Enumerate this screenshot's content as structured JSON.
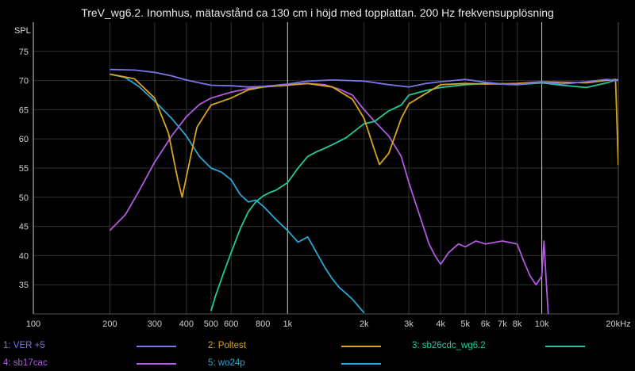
{
  "chart_data": {
    "type": "line",
    "title": "TreV_wg6.2. Inomhus, mätavstånd ca 130 cm i höjd med topplattan. 200 Hz frekvensupplösning",
    "ylabel": "SPL",
    "xlabel": "",
    "xscale": "log",
    "xlim": [
      100,
      20000
    ],
    "ylim": [
      30,
      80
    ],
    "yticks": [
      35,
      40,
      45,
      50,
      55,
      60,
      65,
      70,
      75
    ],
    "xticks": [
      {
        "v": 100,
        "label": "100"
      },
      {
        "v": 200,
        "label": "200"
      },
      {
        "v": 300,
        "label": "300"
      },
      {
        "v": 400,
        "label": "400"
      },
      {
        "v": 500,
        "label": "500"
      },
      {
        "v": 600,
        "label": "600"
      },
      {
        "v": 800,
        "label": "800"
      },
      {
        "v": 1000,
        "label": "1k"
      },
      {
        "v": 2000,
        "label": "2k"
      },
      {
        "v": 3000,
        "label": "3k"
      },
      {
        "v": 4000,
        "label": "4k"
      },
      {
        "v": 5000,
        "label": "5k"
      },
      {
        "v": 6000,
        "label": "6k"
      },
      {
        "v": 7000,
        "label": "7k"
      },
      {
        "v": 8000,
        "label": "8k"
      },
      {
        "v": 10000,
        "label": "10k"
      },
      {
        "v": 20000,
        "label": "20kHz"
      }
    ],
    "grid": true,
    "legend_position": "bottom",
    "series": [
      {
        "name": "1: VER +5",
        "color": "#7b73e6",
        "x": [
          200,
          250,
          300,
          350,
          400,
          450,
          500,
          600,
          700,
          800,
          900,
          1000,
          1200,
          1500,
          2000,
          2500,
          3000,
          3500,
          4000,
          5000,
          6000,
          7000,
          8000,
          10000,
          12000,
          15000,
          18000,
          20000
        ],
        "y": [
          71.9,
          71.8,
          71.4,
          70.8,
          70.1,
          69.6,
          69.2,
          69.1,
          68.9,
          69.0,
          69.2,
          69.4,
          69.9,
          70.1,
          69.9,
          69.3,
          68.9,
          69.5,
          69.8,
          70.2,
          69.7,
          69.4,
          69.3,
          69.8,
          69.4,
          69.8,
          70.2,
          70.0
        ]
      },
      {
        "name": "2: Poltest",
        "color": "#d9a520",
        "x": [
          200,
          250,
          300,
          340,
          370,
          385,
          400,
          440,
          500,
          600,
          700,
          800,
          1000,
          1200,
          1500,
          1800,
          2000,
          2200,
          2300,
          2500,
          2800,
          3000,
          3500,
          4000,
          5000,
          6000,
          8000,
          10000,
          15000,
          19500,
          20000
        ],
        "y": [
          71.1,
          70.3,
          67.0,
          61.0,
          53.0,
          50.0,
          53.5,
          62.0,
          65.8,
          67.0,
          68.4,
          68.9,
          69.2,
          69.5,
          68.9,
          66.8,
          63.5,
          58.0,
          55.6,
          57.5,
          63.5,
          66.0,
          67.8,
          69.3,
          69.5,
          69.4,
          69.5,
          69.8,
          69.6,
          70.2,
          55.5
        ]
      },
      {
        "name": "3: sb26cdc_wg6.2",
        "color": "#22c99a",
        "x": [
          500,
          520,
          560,
          600,
          650,
          700,
          750,
          800,
          850,
          900,
          1000,
          1100,
          1200,
          1300,
          1400,
          1500,
          1700,
          2000,
          2200,
          2500,
          2800,
          3000,
          3500,
          4000,
          5000,
          6000,
          8000,
          10000,
          12000,
          15000,
          18000,
          20000
        ],
        "y": [
          30.5,
          33.0,
          37.0,
          40.5,
          44.5,
          47.5,
          49.2,
          50.2,
          50.8,
          51.2,
          52.5,
          55.0,
          57.0,
          57.8,
          58.4,
          59.0,
          60.2,
          62.6,
          63.0,
          64.8,
          65.8,
          67.5,
          68.3,
          68.8,
          69.3,
          69.5,
          69.3,
          69.6,
          69.2,
          68.8,
          69.6,
          70.2
        ]
      },
      {
        "name": "4: sb17cac",
        "color": "#b05ae0",
        "x": [
          200,
          230,
          260,
          300,
          350,
          400,
          450,
          500,
          600,
          700,
          800,
          1000,
          1200,
          1400,
          1600,
          1800,
          2000,
          2200,
          2500,
          2800,
          3000,
          3300,
          3600,
          3800,
          4000,
          4300,
          4700,
          5000,
          5500,
          6000,
          7000,
          8000,
          8500,
          9000,
          9500,
          10000,
          10200,
          10400,
          10600
        ],
        "y": [
          44.3,
          47.0,
          51.0,
          56.0,
          60.5,
          63.8,
          65.9,
          67.0,
          68.0,
          68.6,
          69.0,
          69.3,
          69.5,
          69.3,
          68.5,
          67.5,
          65.0,
          63.0,
          60.5,
          57.0,
          52.5,
          47.0,
          42.0,
          40.0,
          38.5,
          40.5,
          42.0,
          41.5,
          42.5,
          42.0,
          42.5,
          42.0,
          39.0,
          36.5,
          35.0,
          36.5,
          42.5,
          36.0,
          30.0
        ]
      },
      {
        "name": "5: wo24p",
        "color": "#2aa6d6",
        "x": [
          200,
          230,
          260,
          300,
          350,
          400,
          450,
          500,
          550,
          600,
          650,
          700,
          750,
          800,
          900,
          1000,
          1100,
          1200,
          1300,
          1400,
          1500,
          1600,
          1700,
          1800,
          1900,
          2000
        ],
        "y": [
          71.1,
          70.5,
          69.0,
          66.5,
          63.5,
          60.5,
          57.0,
          55.0,
          54.3,
          53.0,
          50.5,
          49.2,
          49.5,
          48.5,
          46.2,
          44.3,
          42.3,
          43.2,
          40.5,
          38.0,
          36.0,
          34.5,
          33.5,
          32.5,
          31.3,
          30.2
        ]
      }
    ]
  }
}
